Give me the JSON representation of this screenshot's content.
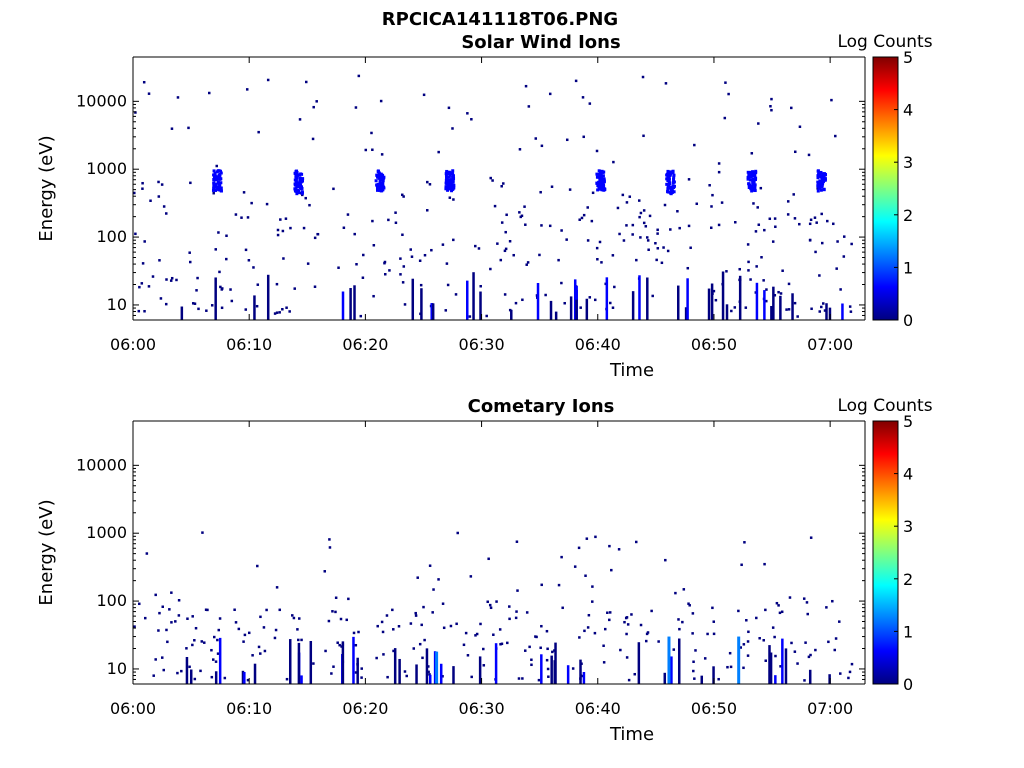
{
  "figure_title": "RPCICA141118T06.PNG",
  "colormap": [
    "#000080",
    "#0000ff",
    "#0080ff",
    "#00ffff",
    "#80ff80",
    "#ffff00",
    "#ff8000",
    "#ff0000",
    "#800000"
  ],
  "chart_data": [
    {
      "type": "heatmap",
      "title": "Solar Wind Ions",
      "xlabel": "Time",
      "ylabel": "Energy (eV)",
      "colorbar_label": "Log Counts",
      "y_scale": "log",
      "ylim": [
        6,
        45000
      ],
      "xlim_minutes": [
        0,
        63
      ],
      "x_tick_labels": [
        "06:00",
        "06:10",
        "06:20",
        "06:30",
        "06:40",
        "06:50",
        "07:00"
      ],
      "y_tick_labels": [
        "10",
        "100",
        "1000",
        "10000"
      ],
      "colorbar_ticks": [
        "0",
        "1",
        "2",
        "3",
        "4",
        "5"
      ],
      "clim": [
        0,
        5
      ],
      "grid": false,
      "bursts": [
        {
          "t": "06:07",
          "energy_low": 500,
          "energy_high": 1000,
          "log_counts": 0.8
        },
        {
          "t": "06:14",
          "energy_low": 450,
          "energy_high": 1000,
          "log_counts": 0.8
        },
        {
          "t": "06:21",
          "energy_low": 500,
          "energy_high": 1000,
          "log_counts": 0.8
        },
        {
          "t": "06:27",
          "energy_low": 500,
          "energy_high": 1000,
          "log_counts": 0.8
        },
        {
          "t": "06:40",
          "energy_low": 500,
          "energy_high": 1000,
          "log_counts": 0.8
        },
        {
          "t": "06:46",
          "energy_low": 450,
          "energy_high": 1000,
          "log_counts": 0.8
        },
        {
          "t": "06:53",
          "energy_low": 500,
          "energy_high": 1000,
          "log_counts": 0.8
        },
        {
          "t": "06:59",
          "energy_low": 500,
          "energy_high": 1000,
          "log_counts": 0.8
        }
      ]
    },
    {
      "type": "heatmap",
      "title": "Cometary Ions",
      "xlabel": "Time",
      "ylabel": "Energy (eV)",
      "colorbar_label": "Log Counts",
      "y_scale": "log",
      "ylim": [
        6,
        45000
      ],
      "xlim_minutes": [
        0,
        63
      ],
      "x_tick_labels": [
        "06:00",
        "06:10",
        "06:20",
        "06:30",
        "06:40",
        "06:50",
        "07:00"
      ],
      "y_tick_labels": [
        "10",
        "100",
        "1000",
        "10000"
      ],
      "colorbar_ticks": [
        "0",
        "1",
        "2",
        "3",
        "4",
        "5"
      ],
      "clim": [
        0,
        5
      ],
      "grid": false,
      "bursts": [
        {
          "t": "06:26",
          "energy_low": 6,
          "energy_high": 18,
          "log_counts": 1.2
        },
        {
          "t": "06:46",
          "energy_low": 6,
          "energy_high": 30,
          "log_counts": 1.3
        },
        {
          "t": "06:52",
          "energy_low": 6,
          "energy_high": 30,
          "log_counts": 1.2
        }
      ]
    }
  ]
}
